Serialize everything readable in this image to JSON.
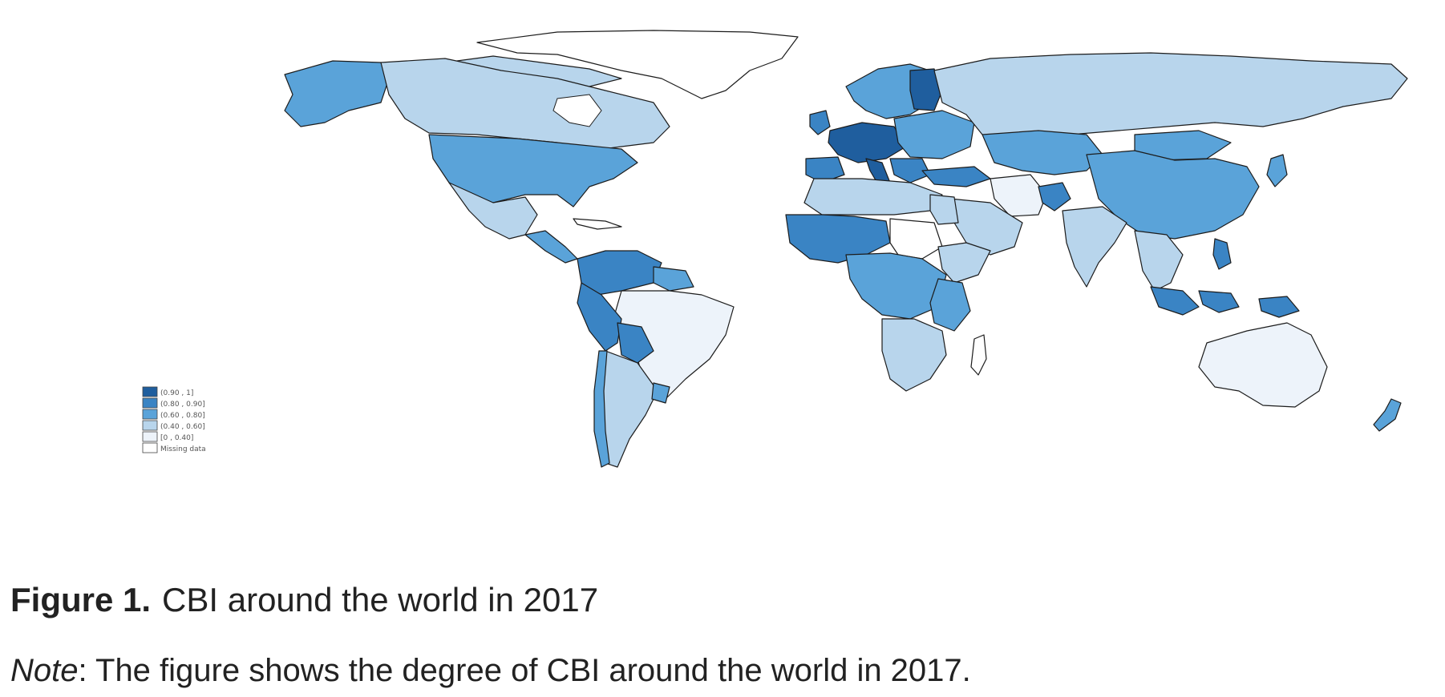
{
  "figure": {
    "number_label": "Figure 1.",
    "title": "CBI around the world in 2017"
  },
  "note": {
    "label": "Note",
    "text": ": The figure shows the degree of CBI around the world in 2017."
  },
  "map": {
    "legend": [
      {
        "label": "(0.90 , 1]",
        "color": "#1f5e9e"
      },
      {
        "label": "(0.80 , 0.90]",
        "color": "#3a84c4"
      },
      {
        "label": "(0.60 , 0.80]",
        "color": "#5aa3d9"
      },
      {
        "label": "(0.40 , 0.60]",
        "color": "#b8d5ec"
      },
      {
        "label": "[0 , 0.40]",
        "color": "#edf3fa"
      },
      {
        "label": "Missing data",
        "color": "#ffffff"
      }
    ]
  }
}
